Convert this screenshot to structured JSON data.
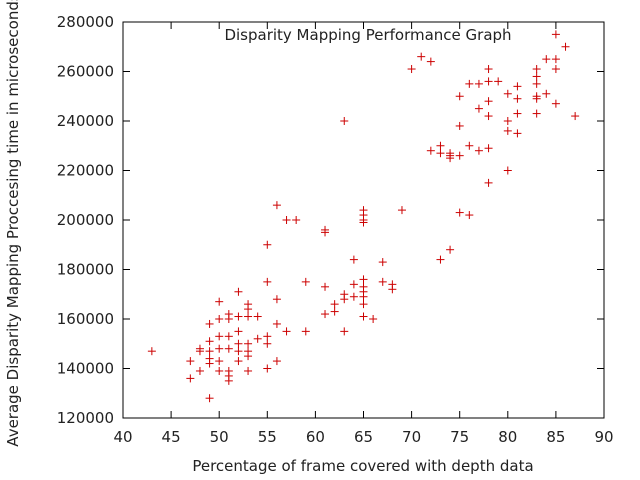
{
  "chart_data": {
    "type": "scatter",
    "title": "Disparity Mapping Performance Graph",
    "xlabel": "Percentage of frame covered with depth data",
    "ylabel": "Average Disparity Mapping Proccesing time in microseconds",
    "xlim": [
      40,
      90
    ],
    "ylim": [
      120000,
      280000
    ],
    "xticks": [
      40,
      45,
      50,
      55,
      60,
      65,
      70,
      75,
      80,
      85,
      90
    ],
    "yticks": [
      120000,
      140000,
      160000,
      180000,
      200000,
      220000,
      240000,
      260000,
      280000
    ],
    "grid": false,
    "marker": "+",
    "marker_color": "#cc0000",
    "points": [
      [
        43,
        147000
      ],
      [
        47,
        143000
      ],
      [
        47,
        136000
      ],
      [
        48,
        148000
      ],
      [
        48,
        147000
      ],
      [
        48,
        139000
      ],
      [
        49,
        158000
      ],
      [
        49,
        151000
      ],
      [
        49,
        147000
      ],
      [
        49,
        144000
      ],
      [
        49,
        142000
      ],
      [
        49,
        128000
      ],
      [
        50,
        167000
      ],
      [
        50,
        160000
      ],
      [
        50,
        153000
      ],
      [
        50,
        148000
      ],
      [
        50,
        143000
      ],
      [
        50,
        139000
      ],
      [
        51,
        162000
      ],
      [
        51,
        160000
      ],
      [
        51,
        153000
      ],
      [
        51,
        148000
      ],
      [
        51,
        139000
      ],
      [
        51,
        137000
      ],
      [
        51,
        135000
      ],
      [
        52,
        171000
      ],
      [
        52,
        161000
      ],
      [
        52,
        155000
      ],
      [
        52,
        150000
      ],
      [
        52,
        147000
      ],
      [
        52,
        143000
      ],
      [
        53,
        166000
      ],
      [
        53,
        164000
      ],
      [
        53,
        161000
      ],
      [
        53,
        150000
      ],
      [
        53,
        147000
      ],
      [
        53,
        145000
      ],
      [
        53,
        139000
      ],
      [
        54,
        161000
      ],
      [
        54,
        152000
      ],
      [
        55,
        190000
      ],
      [
        55,
        175000
      ],
      [
        55,
        153000
      ],
      [
        55,
        150000
      ],
      [
        55,
        140000
      ],
      [
        56,
        206000
      ],
      [
        56,
        168000
      ],
      [
        56,
        158000
      ],
      [
        56,
        143000
      ],
      [
        57,
        200000
      ],
      [
        57,
        155000
      ],
      [
        58,
        200000
      ],
      [
        59,
        175000
      ],
      [
        59,
        155000
      ],
      [
        61,
        196000
      ],
      [
        61,
        195000
      ],
      [
        61,
        173000
      ],
      [
        61,
        162000
      ],
      [
        62,
        166000
      ],
      [
        62,
        163000
      ],
      [
        63,
        240000
      ],
      [
        63,
        170000
      ],
      [
        63,
        168000
      ],
      [
        63,
        155000
      ],
      [
        64,
        184000
      ],
      [
        64,
        174000
      ],
      [
        64,
        169000
      ],
      [
        65,
        204000
      ],
      [
        65,
        202000
      ],
      [
        65,
        200000
      ],
      [
        65,
        199000
      ],
      [
        65,
        176000
      ],
      [
        65,
        173000
      ],
      [
        65,
        171000
      ],
      [
        65,
        169000
      ],
      [
        65,
        166000
      ],
      [
        65,
        161000
      ],
      [
        66,
        160000
      ],
      [
        67,
        183000
      ],
      [
        67,
        175000
      ],
      [
        68,
        174000
      ],
      [
        68,
        172000
      ],
      [
        69,
        204000
      ],
      [
        70,
        261000
      ],
      [
        71,
        266000
      ],
      [
        72,
        264000
      ],
      [
        72,
        228000
      ],
      [
        73,
        230000
      ],
      [
        73,
        227000
      ],
      [
        73,
        184000
      ],
      [
        74,
        227000
      ],
      [
        74,
        226000
      ],
      [
        74,
        225000
      ],
      [
        74,
        188000
      ],
      [
        75,
        250000
      ],
      [
        75,
        238000
      ],
      [
        75,
        226000
      ],
      [
        75,
        203000
      ],
      [
        76,
        255000
      ],
      [
        76,
        230000
      ],
      [
        76,
        202000
      ],
      [
        77,
        255000
      ],
      [
        77,
        245000
      ],
      [
        77,
        228000
      ],
      [
        78,
        261000
      ],
      [
        78,
        256000
      ],
      [
        78,
        248000
      ],
      [
        78,
        242000
      ],
      [
        78,
        229000
      ],
      [
        78,
        215000
      ],
      [
        79,
        256000
      ],
      [
        80,
        251000
      ],
      [
        80,
        240000
      ],
      [
        80,
        236000
      ],
      [
        80,
        220000
      ],
      [
        81,
        254000
      ],
      [
        81,
        249000
      ],
      [
        81,
        243000
      ],
      [
        81,
        235000
      ],
      [
        83,
        261000
      ],
      [
        83,
        258000
      ],
      [
        83,
        255000
      ],
      [
        83,
        250000
      ],
      [
        83,
        249000
      ],
      [
        83,
        243000
      ],
      [
        84,
        265000
      ],
      [
        84,
        251000
      ],
      [
        85,
        275000
      ],
      [
        85,
        265000
      ],
      [
        85,
        261000
      ],
      [
        85,
        247000
      ],
      [
        86,
        270000
      ],
      [
        87,
        242000
      ]
    ]
  }
}
